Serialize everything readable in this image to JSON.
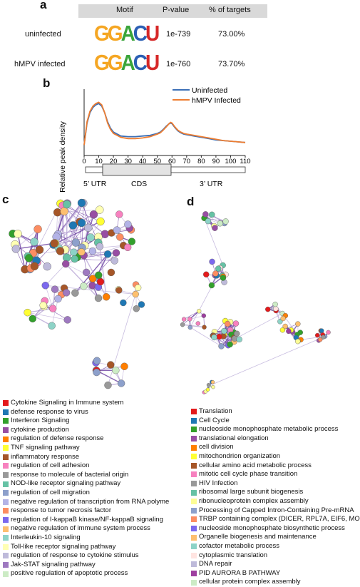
{
  "panels": {
    "a": "a",
    "b": "b",
    "c": "c",
    "d": "d"
  },
  "motif_table": {
    "headers": [
      "Motif",
      "P-value",
      "% of targets"
    ],
    "rows": [
      {
        "condition": "uninfected",
        "motif": "GGACU",
        "pvalue": "1e-739",
        "percent": "73.00%"
      },
      {
        "condition": "hMPV infected",
        "motif": "GGACU",
        "pvalue": "1e-760",
        "percent": "73.70%"
      }
    ],
    "colors": {
      "G": "#f5a623",
      "A": "#3aa53a",
      "C": "#2b5fb4",
      "U": "#d62828"
    }
  },
  "chart_data": {
    "type": "line",
    "ylabel": "Relative peak density",
    "xlabel": "",
    "xlim": [
      0,
      110
    ],
    "x_ticks": [
      "0",
      "10",
      "20",
      "30",
      "40",
      "50",
      "60",
      "70",
      "80",
      "90",
      "100",
      "110"
    ],
    "series": [
      {
        "name": "Uninfected",
        "color": "#3b6fb6",
        "x": [
          0,
          2,
          4,
          6,
          8,
          10,
          12,
          14,
          16,
          18,
          20,
          25,
          30,
          35,
          40,
          45,
          50,
          52,
          54,
          56,
          58,
          59,
          60,
          62,
          64,
          66,
          68,
          70,
          75,
          80,
          85,
          90,
          95,
          100,
          105,
          110
        ],
        "y": [
          0.08,
          0.25,
          0.33,
          0.37,
          0.39,
          0.4,
          0.38,
          0.33,
          0.26,
          0.21,
          0.18,
          0.15,
          0.145,
          0.145,
          0.15,
          0.155,
          0.17,
          0.18,
          0.2,
          0.225,
          0.245,
          0.25,
          0.245,
          0.215,
          0.19,
          0.175,
          0.165,
          0.16,
          0.15,
          0.14,
          0.13,
          0.12,
          0.115,
          0.11,
          0.105,
          0.1
        ]
      },
      {
        "name": "hMPV Infected",
        "color": "#ed7d31",
        "x": [
          0,
          2,
          4,
          6,
          8,
          10,
          12,
          14,
          16,
          18,
          20,
          25,
          30,
          35,
          40,
          45,
          50,
          52,
          54,
          56,
          58,
          59,
          60,
          62,
          64,
          66,
          68,
          70,
          75,
          80,
          85,
          90,
          95,
          100,
          105,
          110
        ],
        "y": [
          0.08,
          0.26,
          0.34,
          0.38,
          0.4,
          0.41,
          0.39,
          0.33,
          0.25,
          0.2,
          0.17,
          0.14,
          0.13,
          0.13,
          0.135,
          0.145,
          0.165,
          0.175,
          0.195,
          0.22,
          0.245,
          0.255,
          0.25,
          0.22,
          0.195,
          0.18,
          0.17,
          0.165,
          0.155,
          0.145,
          0.135,
          0.125,
          0.115,
          0.11,
          0.105,
          0.1
        ]
      }
    ],
    "ylim": [
      0,
      0.5
    ],
    "regions": [
      "5’ UTR",
      "CDS",
      "3’ UTR"
    ]
  },
  "legend_c": [
    {
      "label": "Cytokine Signaling in Immune system",
      "color": "#e41a1c"
    },
    {
      "label": "defense response to virus",
      "color": "#1f78b4"
    },
    {
      "label": "Interferon Signaling",
      "color": "#33a02c"
    },
    {
      "label": "cytokine production",
      "color": "#984ea3"
    },
    {
      "label": "regulation of defense response",
      "color": "#ff7f00"
    },
    {
      "label": "TNF signaling pathway",
      "color": "#ffff33"
    },
    {
      "label": "inflammatory response",
      "color": "#a65628"
    },
    {
      "label": "regulation of cell adhesion",
      "color": "#f781bf"
    },
    {
      "label": "response to molecule of bacterial origin",
      "color": "#999999"
    },
    {
      "label": "NOD-like receptor signaling pathway",
      "color": "#66c2a5"
    },
    {
      "label": "regulation of cell migration",
      "color": "#8da0cb"
    },
    {
      "label": "negative regulation of transcription from RNA polyme",
      "color": "#b3b3e6"
    },
    {
      "label": "response to tumor necrosis factor",
      "color": "#fc8d62"
    },
    {
      "label": "regulation of I-kappaB kinase/NF-kappaB signaling",
      "color": "#7b68ee"
    },
    {
      "label": "negative regulation of immune system process",
      "color": "#fdbf6f"
    },
    {
      "label": "Interleukin-10 signaling",
      "color": "#8dd3c7"
    },
    {
      "label": "Toll-like receptor signaling pathway",
      "color": "#ffffb3"
    },
    {
      "label": "regulation of response to cytokine stimulus",
      "color": "#bebada"
    },
    {
      "label": "Jak-STAT signaling pathway",
      "color": "#9e79c0"
    },
    {
      "label": "positive regulation of apoptotic process",
      "color": "#ccebc5"
    }
  ],
  "legend_d": [
    {
      "label": "Translation",
      "color": "#e41a1c"
    },
    {
      "label": "Cell Cycle",
      "color": "#1f78b4"
    },
    {
      "label": "nucleoside monophosphate metabolic process",
      "color": "#33a02c"
    },
    {
      "label": "translational elongation",
      "color": "#984ea3"
    },
    {
      "label": "cell division",
      "color": "#ff7f00"
    },
    {
      "label": "mitochondrion organization",
      "color": "#ffff33"
    },
    {
      "label": "cellular amino acid metabolic process",
      "color": "#a65628"
    },
    {
      "label": "mitotic cell cycle phase transition",
      "color": "#f781bf"
    },
    {
      "label": "HIV Infection",
      "color": "#999999"
    },
    {
      "label": "ribosomal large subunit biogenesis",
      "color": "#66c2a5"
    },
    {
      "label": "ribonucleoprotein complex assembly",
      "color": "#fdfd96"
    },
    {
      "label": "Processing of Capped Intron-Containing Pre-mRNA",
      "color": "#8da0cb"
    },
    {
      "label": "TRBP containing complex (DICER, RPL7A, EIF6, MO",
      "color": "#fc8d62"
    },
    {
      "label": "nucleoside monophosphate biosynthetic process",
      "color": "#7b68ee"
    },
    {
      "label": "Organelle biogenesis and maintenance",
      "color": "#fdbf6f"
    },
    {
      "label": "cofactor metabolic process",
      "color": "#8dd3c7"
    },
    {
      "label": "cytoplasmic translation",
      "color": "#ffe4e1"
    },
    {
      "label": "DNA repair",
      "color": "#bebada"
    },
    {
      "label": "PID AURORA B PATHWAY",
      "color": "#9e3fa0"
    },
    {
      "label": "cellular protein complex assembly",
      "color": "#ccebc5"
    }
  ]
}
